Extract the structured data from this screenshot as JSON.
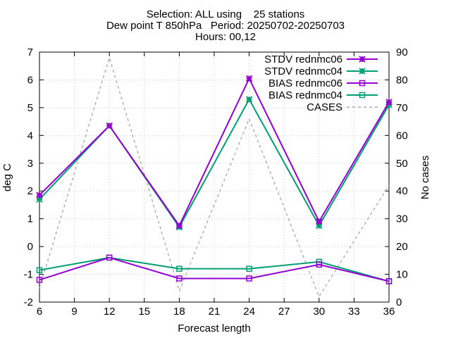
{
  "title": {
    "line1": "Selection: ALL using    25 stations",
    "line2": "Dew point T 850hPa   Period: 20250702-20250703",
    "line3": "Hours: 00,12"
  },
  "colors": {
    "rednmc06": "#9400d3",
    "rednmc04": "#009e73",
    "cases": "#a0a0a0"
  },
  "chart_data": {
    "type": "line",
    "xlabel": "Forecast length",
    "ylabel": "deg C",
    "y2label": "No cases",
    "xlim": [
      6,
      36
    ],
    "ylim": [
      -2,
      7
    ],
    "y2lim": [
      0,
      90
    ],
    "xticks": [
      6,
      9,
      12,
      15,
      18,
      21,
      24,
      27,
      30,
      33,
      36
    ],
    "yticks": [
      -2,
      -1,
      0,
      1,
      2,
      3,
      4,
      5,
      6,
      7
    ],
    "y2ticks": [
      0,
      10,
      20,
      30,
      40,
      50,
      60,
      70,
      80,
      90
    ],
    "x": [
      6,
      12,
      18,
      24,
      30,
      36
    ],
    "legend_position": "top-right",
    "series": [
      {
        "name": "STDV rednmc06",
        "axis": "y",
        "color": "#9400d3",
        "marker": "star",
        "dash": "",
        "values": [
          1.85,
          4.35,
          0.75,
          6.05,
          0.9,
          5.2
        ]
      },
      {
        "name": "STDV rednmc04",
        "axis": "y",
        "color": "#009e73",
        "marker": "star",
        "dash": "",
        "values": [
          1.7,
          4.35,
          0.7,
          5.3,
          0.75,
          5.1
        ]
      },
      {
        "name": "BIAS rednmc06",
        "axis": "y",
        "color": "#9400d3",
        "marker": "square",
        "dash": "",
        "values": [
          -1.2,
          -0.4,
          -1.15,
          -1.15,
          -0.65,
          -1.25
        ]
      },
      {
        "name": "BIAS rednmc04",
        "axis": "y",
        "color": "#009e73",
        "marker": "square",
        "dash": "",
        "values": [
          -0.85,
          -0.4,
          -0.8,
          -0.8,
          -0.55,
          -1.25
        ]
      },
      {
        "name": "CASES",
        "axis": "y2",
        "color": "#a0a0a0",
        "marker": "none",
        "dash": "4,4",
        "values": [
          5,
          88,
          4,
          66,
          2,
          42
        ]
      }
    ]
  }
}
